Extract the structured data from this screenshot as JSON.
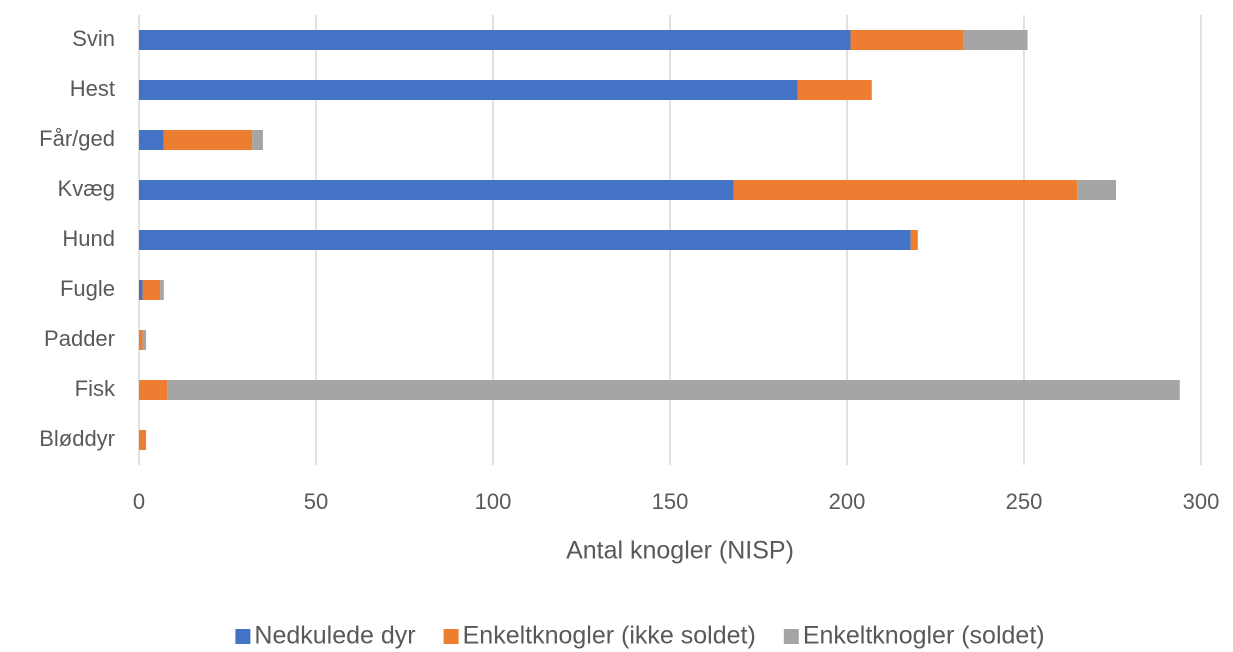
{
  "chart_data": {
    "type": "bar",
    "horizontal": true,
    "stacked": true,
    "x_label": "Antal knogler (NISP)",
    "categories": [
      "Svin",
      "Hest",
      "Får/ged",
      "Kvæg",
      "Hund",
      "Fugle",
      "Padder",
      "Fisk",
      "Bløddyr"
    ],
    "series": [
      {
        "name": "Nedkulede dyr",
        "color": "#4472c4",
        "values": [
          201,
          186,
          7,
          168,
          218,
          1,
          0,
          0,
          0
        ]
      },
      {
        "name": "Enkeltknogler (ikke soldet)",
        "color": "#ed7d31",
        "values": [
          32,
          21,
          25,
          97,
          2,
          5,
          1,
          8,
          2
        ]
      },
      {
        "name": "Enkeltknogler (soldet)",
        "color": "#a5a5a5",
        "values": [
          18,
          0,
          3,
          11,
          0,
          1,
          1,
          286,
          0
        ]
      }
    ],
    "xlim": [
      0,
      300
    ],
    "xticks": [
      0,
      50,
      100,
      150,
      200,
      250,
      300
    ],
    "grid": true,
    "legend": "bottom"
  }
}
